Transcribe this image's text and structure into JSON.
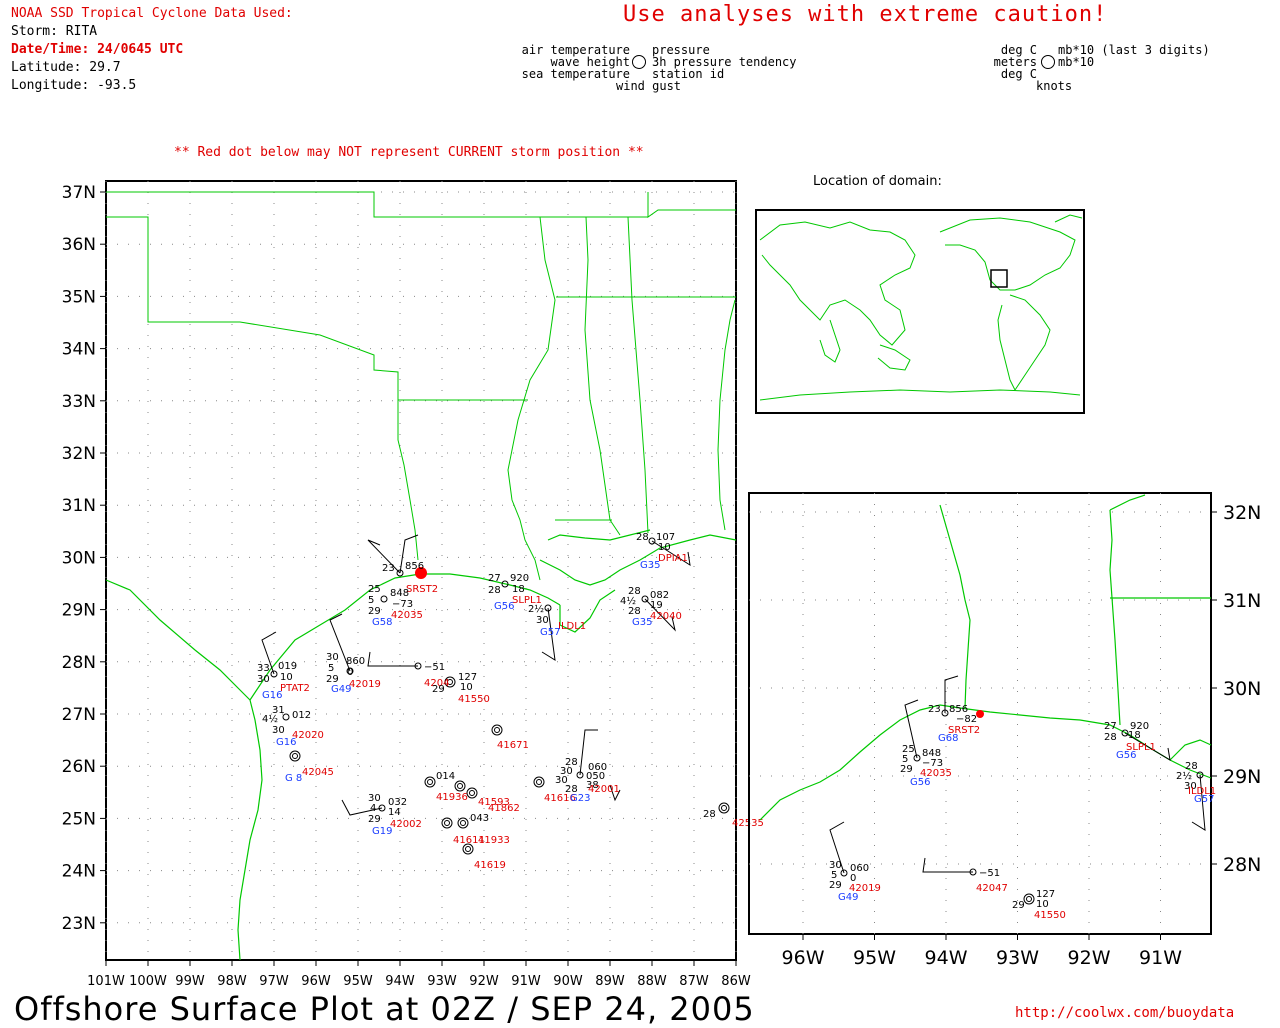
{
  "header": {
    "source": "NOAA SSD Tropical Cyclone Data Used:",
    "storm": "Storm: RITA",
    "datetime": "Date/Time: 24/0645 UTC",
    "latitude": "Latitude: 29.7",
    "longitude": "Longitude: -93.5",
    "caution": "Use analyses with extreme caution!",
    "red_dot_note": "** Red dot below may NOT represent CURRENT storm position **"
  },
  "legend": {
    "left_labels": [
      "air temperature",
      "wave height",
      "sea temperature"
    ],
    "right_labels": [
      "pressure",
      "3h pressure tendency",
      "station id"
    ],
    "bottom_label": "wind gust",
    "unit_left": [
      "deg C",
      "meters",
      "deg C"
    ],
    "unit_right": [
      "mb*10 (last 3 digits)",
      "mb*10"
    ],
    "unit_bottom": "knots"
  },
  "main_map": {
    "lat_labels": [
      "37N",
      "36N",
      "35N",
      "34N",
      "33N",
      "32N",
      "31N",
      "30N",
      "29N",
      "28N",
      "27N",
      "26N",
      "25N",
      "24N",
      "23N"
    ],
    "lon_labels": [
      "101W",
      "100W",
      "99W",
      "98W",
      "97W",
      "96W",
      "95W",
      "94W",
      "93W",
      "92W",
      "91W",
      "90W",
      "89W",
      "88W",
      "87W",
      "86W"
    ],
    "stations": [
      {
        "id": "SRST2",
        "color": "red"
      },
      {
        "id": "42035",
        "color": "red"
      },
      {
        "id": "42019",
        "color": "red"
      },
      {
        "id": "PTAT2",
        "color": "red"
      },
      {
        "id": "42020",
        "color": "red"
      },
      {
        "id": "42045",
        "color": "red"
      },
      {
        "id": "42002",
        "color": "red"
      },
      {
        "id": "41550",
        "color": "red"
      },
      {
        "id": "41671",
        "color": "red"
      },
      {
        "id": "DPIA1",
        "color": "red"
      },
      {
        "id": "42040",
        "color": "red"
      },
      {
        "id": "ILDL1",
        "color": "red"
      },
      {
        "id": "SLPL1",
        "color": "red"
      },
      {
        "id": "42535",
        "color": "red"
      },
      {
        "id": "41619",
        "color": "red"
      },
      {
        "id": "41933",
        "color": "red"
      },
      {
        "id": "41862",
        "color": "red"
      }
    ]
  },
  "locator": {
    "title": "Location of domain:"
  },
  "inset": {
    "lat_labels": [
      "32N",
      "31N",
      "30N",
      "29N",
      "28N"
    ],
    "lon_labels": [
      "96W",
      "95W",
      "94W",
      "93W",
      "92W",
      "91W"
    ]
  },
  "footer": {
    "title": "Offshore Surface Plot at 02Z / SEP 24, 2005",
    "url": "http://coolwx.com/buoydata"
  },
  "colors": {
    "coast": "#00c800",
    "text_red": "#e00000",
    "text_blue": "#1a3cff",
    "storm_dot": "#ff0000"
  }
}
